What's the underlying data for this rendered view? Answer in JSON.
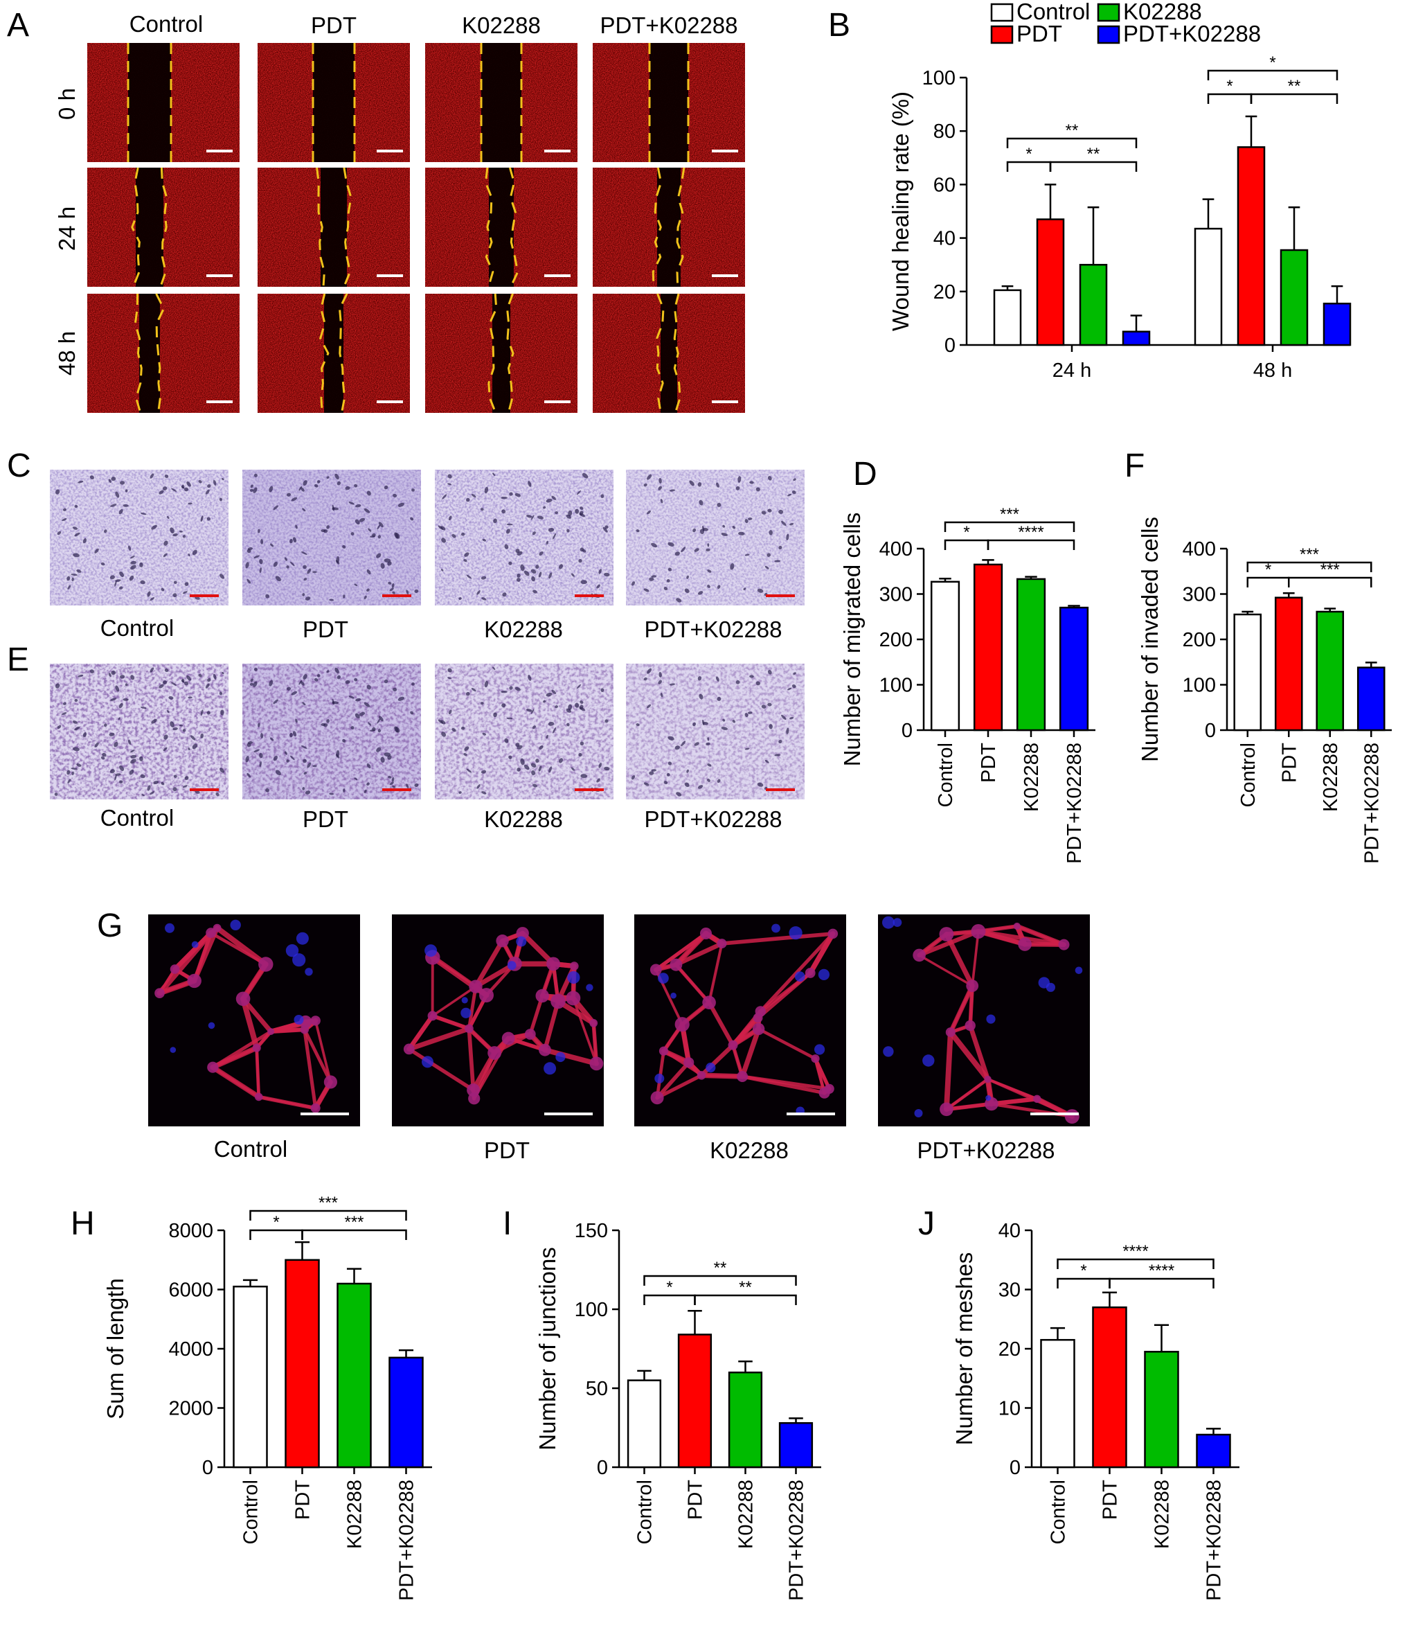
{
  "figure": {
    "panel_labels": [
      "A",
      "B",
      "C",
      "D",
      "E",
      "F",
      "G",
      "H",
      "I",
      "J"
    ],
    "panel_a": {
      "columns": [
        "Control",
        "PDT",
        "K02288",
        "PDT+K02288"
      ],
      "rows": [
        "0 h",
        "24 h",
        "48 h"
      ]
    },
    "panel_c": {
      "captions": [
        "Control",
        "PDT",
        "K02288",
        "PDT+K02288"
      ]
    },
    "panel_e": {
      "captions": [
        "Control",
        "PDT",
        "K02288",
        "PDT+K02288"
      ]
    },
    "panel_g": {
      "captions": [
        "Control",
        "PDT",
        "K02288",
        "PDT+K02288"
      ]
    }
  },
  "colors": {
    "Control": "#ffffff",
    "PDT": "#ff0000",
    "K02288": "#00bb00",
    "PDT+K02288": "#0000ff",
    "wound_tissue": "#b00000",
    "wound_line": "#f2c21b",
    "crystal_violet": "#8a7cc0",
    "tube_red": "#d0204a",
    "tube_blue": "#2a2ae0",
    "scale_bar_white": "#ffffff",
    "scale_bar_red": "#e01010"
  },
  "chart_data": [
    {
      "panel": "B",
      "type": "bar",
      "categories": [
        "24 h",
        "48 h"
      ],
      "series": [
        {
          "name": "Control",
          "values": [
            20.5,
            43.5
          ],
          "errors": [
            1.5,
            11
          ]
        },
        {
          "name": "PDT",
          "values": [
            47,
            74
          ],
          "errors": [
            13,
            11.5
          ]
        },
        {
          "name": "K02288",
          "values": [
            30,
            35.5
          ],
          "errors": [
            21.5,
            16
          ]
        },
        {
          "name": "PDT+K02288",
          "values": [
            5,
            15.5
          ],
          "errors": [
            6,
            6.5
          ]
        }
      ],
      "ylabel": "Wound healing rate (%)",
      "ylim": [
        0,
        100
      ],
      "yticks": [
        0,
        20,
        40,
        60,
        80,
        100
      ],
      "legend": "top",
      "significance": [
        {
          "cat": 0,
          "a": 0,
          "b": 3,
          "text": "**",
          "level": 1
        },
        {
          "cat": 0,
          "a": 0,
          "b": 1,
          "text": "*",
          "level": 0
        },
        {
          "cat": 0,
          "a": 1,
          "b": 3,
          "text": "**",
          "level": 0
        },
        {
          "cat": 1,
          "a": 0,
          "b": 3,
          "text": "*",
          "level": 1
        },
        {
          "cat": 1,
          "a": 0,
          "b": 1,
          "text": "*",
          "level": 0
        },
        {
          "cat": 1,
          "a": 1,
          "b": 3,
          "text": "**",
          "level": 0
        }
      ]
    },
    {
      "panel": "D",
      "type": "bar",
      "categories": [
        "Control",
        "PDT",
        "K02288",
        "PDT+K02288"
      ],
      "values": [
        327,
        365,
        333,
        270
      ],
      "errors": [
        7,
        10,
        5,
        4
      ],
      "ylabel": "Number of migrated cells",
      "ylim": [
        0,
        400
      ],
      "yticks": [
        0,
        100,
        200,
        300,
        400
      ],
      "significance": [
        {
          "a": 0,
          "b": 3,
          "text": "***",
          "level": 1
        },
        {
          "a": 0,
          "b": 1,
          "text": "*",
          "level": 0
        },
        {
          "a": 1,
          "b": 3,
          "text": "****",
          "level": 0
        }
      ]
    },
    {
      "panel": "F",
      "type": "bar",
      "categories": [
        "Control",
        "PDT",
        "K02288",
        "PDT+K02288"
      ],
      "values": [
        255,
        292,
        261,
        138
      ],
      "errors": [
        6,
        10,
        7,
        11
      ],
      "ylabel": "Number of invaded cells",
      "ylim": [
        0,
        400
      ],
      "yticks": [
        0,
        100,
        200,
        300,
        400
      ],
      "significance": [
        {
          "a": 0,
          "b": 3,
          "text": "***",
          "level": 1
        },
        {
          "a": 0,
          "b": 1,
          "text": "*",
          "level": 0
        },
        {
          "a": 1,
          "b": 3,
          "text": "***",
          "level": 0
        }
      ]
    },
    {
      "panel": "H",
      "type": "bar",
      "categories": [
        "Control",
        "PDT",
        "K02288",
        "PDT+K02288"
      ],
      "values": [
        6100,
        7000,
        6200,
        3700
      ],
      "errors": [
        220,
        600,
        500,
        250
      ],
      "ylabel": "Sum of length",
      "ylim": [
        0,
        8000
      ],
      "yticks": [
        0,
        2000,
        4000,
        6000,
        8000
      ],
      "significance": [
        {
          "a": 0,
          "b": 3,
          "text": "***",
          "level": 1
        },
        {
          "a": 0,
          "b": 1,
          "text": "*",
          "level": 0
        },
        {
          "a": 1,
          "b": 3,
          "text": "***",
          "level": 0
        }
      ]
    },
    {
      "panel": "I",
      "type": "bar",
      "categories": [
        "Control",
        "PDT",
        "K02288",
        "PDT+K02288"
      ],
      "values": [
        55,
        84,
        60,
        28
      ],
      "errors": [
        6,
        15,
        7,
        3
      ],
      "ylabel": "Number of junctions",
      "ylim": [
        0,
        150
      ],
      "yticks": [
        0,
        50,
        100,
        150
      ],
      "significance": [
        {
          "a": 0,
          "b": 3,
          "text": "**",
          "level": 1
        },
        {
          "a": 0,
          "b": 1,
          "text": "*",
          "level": 0
        },
        {
          "a": 1,
          "b": 3,
          "text": "**",
          "level": 0
        }
      ]
    },
    {
      "panel": "J",
      "type": "bar",
      "categories": [
        "Control",
        "PDT",
        "K02288",
        "PDT+K02288"
      ],
      "values": [
        21.5,
        27,
        19.5,
        5.5
      ],
      "errors": [
        2,
        2.5,
        4.5,
        1
      ],
      "ylabel": "Number of meshes",
      "ylim": [
        0,
        40
      ],
      "yticks": [
        0,
        10,
        20,
        30,
        40
      ],
      "significance": [
        {
          "a": 0,
          "b": 3,
          "text": "****",
          "level": 1
        },
        {
          "a": 0,
          "b": 1,
          "text": "*",
          "level": 0
        },
        {
          "a": 1,
          "b": 3,
          "text": "****",
          "level": 0
        }
      ]
    }
  ]
}
